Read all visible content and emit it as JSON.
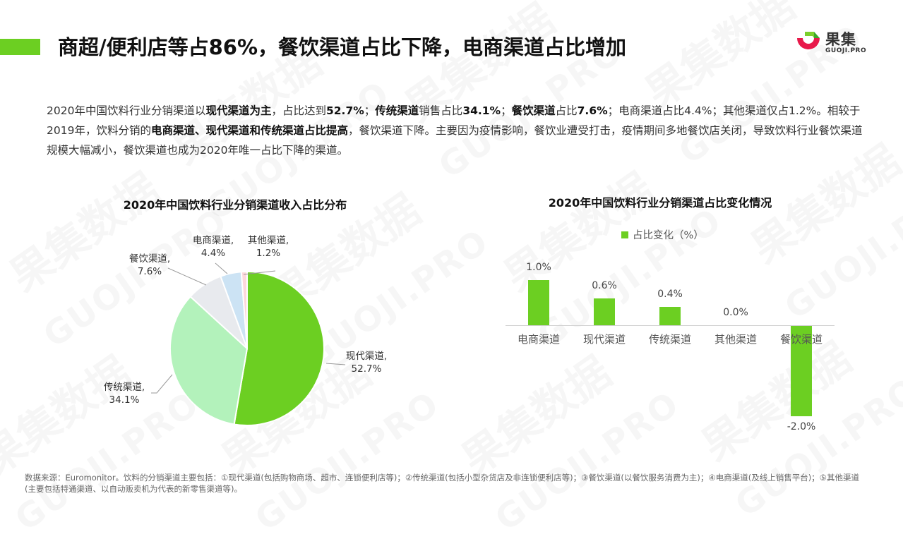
{
  "header": {
    "title": "商超/便利店等占86%，餐饮渠道占比下降，电商渠道占比增加",
    "accent_color": "#6ccf22",
    "logo": {
      "name_cn": "果集",
      "name_en": "GUOJI.PRO",
      "icon": "guoji-logo-icon",
      "colors": [
        "#e8194a",
        "#7ccf2c"
      ]
    }
  },
  "summary": {
    "segments": [
      {
        "text": "2020年中国饮料行业分销渠道以",
        "bold": false
      },
      {
        "text": "现代渠道为主",
        "bold": true
      },
      {
        "text": "，占比达到",
        "bold": false
      },
      {
        "text": "52.7%",
        "bold": true
      },
      {
        "text": "；",
        "bold": false
      },
      {
        "text": "传统渠道",
        "bold": true
      },
      {
        "text": "销售占比",
        "bold": false
      },
      {
        "text": "34.1%",
        "bold": true
      },
      {
        "text": "；",
        "bold": false
      },
      {
        "text": "餐饮渠道",
        "bold": true
      },
      {
        "text": "占比",
        "bold": false
      },
      {
        "text": "7.6%",
        "bold": true
      },
      {
        "text": "；电商渠道占比4.4%；其他渠道仅占1.2%。相较于2019年，饮料分销的",
        "bold": false
      },
      {
        "text": "电商渠道、现代渠道和传统渠道占比提高",
        "bold": true
      },
      {
        "text": "，餐饮渠道下降。主要因为疫情影响，餐饮业遭受打击，疫情期间多地餐饮店关闭，导致饮料行业餐饮渠道规模大幅减小，餐饮渠道也成为2020年唯一占比下降的渠道。",
        "bold": false
      }
    ]
  },
  "watermark": {
    "cn": "果集数据",
    "en": "GUOJI.PRO"
  },
  "chart_data": [
    {
      "type": "pie",
      "title": "2020年中国饮料行业分销渠道收入占比分布",
      "categories": [
        "现代渠道",
        "传统渠道",
        "餐饮渠道",
        "电商渠道",
        "其他渠道"
      ],
      "values": [
        52.7,
        34.1,
        7.6,
        4.4,
        1.2
      ],
      "unit": "%",
      "colors": [
        "#6ccf22",
        "#b3f2bb",
        "#e8eaee",
        "#cce3f4",
        "#fdd8dc"
      ],
      "labels": [
        {
          "name": "现代渠道,",
          "value": "52.7%"
        },
        {
          "name": "传统渠道,",
          "value": "34.1%"
        },
        {
          "name": "餐饮渠道,",
          "value": "7.6%"
        },
        {
          "name": "电商渠道,",
          "value": "4.4%"
        },
        {
          "name": "其他渠道,",
          "value": "1.2%"
        }
      ],
      "start_angle": "12 o'clock, clockwise",
      "legend": "none (data labels with leader lines)"
    },
    {
      "type": "bar",
      "title": "2020年中国饮料行业分销渠道占比变化情况",
      "categories": [
        "电商渠道",
        "现代渠道",
        "传统渠道",
        "其他渠道",
        "餐饮渠道"
      ],
      "series": [
        {
          "name": "占比变化（%）",
          "values": [
            1.0,
            0.6,
            0.4,
            0.0,
            -2.0
          ],
          "color": "#6ccf22"
        }
      ],
      "value_labels": [
        "1.0%",
        "0.6%",
        "0.4%",
        "0.0%",
        "-2.0%"
      ],
      "xlabel": "",
      "ylabel": "",
      "ylim": [
        -2.0,
        1.0
      ],
      "grid": false,
      "legend_position": "top"
    }
  ],
  "footnote": {
    "text": "数据来源：Euromonitor。饮料的分销渠道主要包括：①现代渠道(包括购物商场、超市、连锁便利店等)；②传统渠道(包括小型杂货店及非连锁便利店等)；③餐饮渠道(以餐饮服务消费为主)；④电商渠道(及线上销售平台)；⑤其他渠道(主要包括特通渠道、以自动贩卖机为代表的新零售渠道等)。"
  }
}
